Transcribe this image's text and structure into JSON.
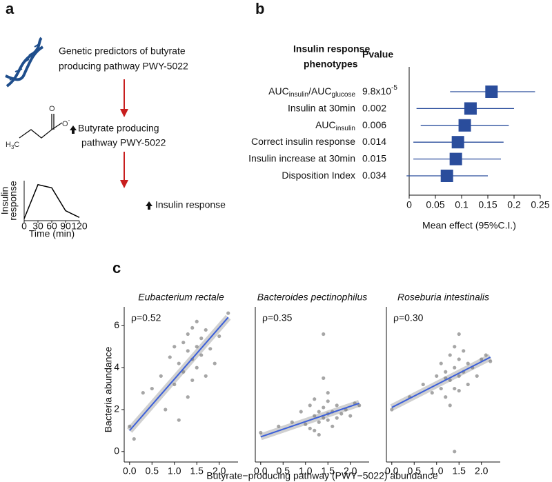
{
  "panel_a": {
    "label": "a",
    "step1": [
      "Genetic predictors of butyrate",
      "producing pathway PWY-5022"
    ],
    "step2": [
      "Butyrate producing",
      "pathway PWY-5022"
    ],
    "step3": "Insulin response",
    "molecule": {
      "oxygen": "O",
      "oxygen_ion": [
        "O",
        "-"
      ],
      "methyl": [
        "H",
        "3",
        "C"
      ]
    }
  },
  "panel_b": {
    "label": "b"
  },
  "panel_c": {
    "label": "c",
    "ylabel": "Bacteria abundance",
    "xlabel": "Butyrate−producing pathway (PWY−5022) abundance"
  },
  "chart_data": [
    {
      "type": "line",
      "ylabel": [
        "Insulin",
        "response"
      ],
      "xlabel": "Time (min)",
      "x": [
        0,
        30,
        60,
        90,
        120
      ],
      "values": [
        0.05,
        0.9,
        0.82,
        0.25,
        0.08
      ],
      "xlim": [
        0,
        120
      ],
      "xticks": [
        0,
        30,
        60,
        90,
        120
      ],
      "ylim": [
        0,
        1
      ],
      "color": "#000000"
    },
    {
      "type": "forest",
      "header": [
        "Insulin response",
        "phenotypes"
      ],
      "pvalue_header": "Pvalue",
      "categories": [
        [
          "AUC",
          "insulin",
          "/AUC",
          "glucose"
        ],
        [
          "Insulin at 30min"
        ],
        [
          "AUC",
          "insulin"
        ],
        [
          "Correct insulin response"
        ],
        [
          "Insulin increase at 30min"
        ],
        [
          "Disposition Index"
        ]
      ],
      "pvalue_labels": [
        [
          "9.8x10",
          "-5"
        ],
        [
          "0.002"
        ],
        [
          "0.006"
        ],
        [
          "0.014"
        ],
        [
          "0.015"
        ],
        [
          "0.034"
        ]
      ],
      "values": [
        0.157,
        0.117,
        0.106,
        0.093,
        0.089,
        0.072
      ],
      "ci_low": [
        0.078,
        0.014,
        0.022,
        0.008,
        0.008,
        -0.005
      ],
      "ci_high": [
        0.24,
        0.2,
        0.19,
        0.18,
        0.175,
        0.15
      ],
      "xlabel": "Mean effect (95%C.I.)",
      "xlim": [
        0,
        0.25
      ],
      "xticks": [
        0,
        0.05,
        0.1,
        0.15,
        0.2,
        0.25
      ],
      "color": "#2a4d9c"
    },
    {
      "type": "scatter",
      "title": "Eubacterium rectale",
      "annotation": "ρ=0.52",
      "x": [
        0.0,
        0.1,
        0.3,
        0.5,
        0.7,
        0.8,
        0.9,
        1.0,
        1.0,
        1.1,
        1.1,
        1.2,
        1.2,
        1.3,
        1.3,
        1.3,
        1.4,
        1.4,
        1.4,
        1.5,
        1.5,
        1.5,
        1.6,
        1.6,
        1.7,
        1.7,
        1.8,
        1.9,
        2.0,
        2.2
      ],
      "values": [
        1.2,
        0.6,
        2.8,
        3.0,
        3.6,
        2.0,
        4.5,
        3.2,
        5.0,
        4.2,
        1.5,
        5.2,
        3.8,
        4.8,
        5.6,
        2.6,
        4.4,
        5.9,
        3.4,
        5.0,
        4.0,
        6.2,
        4.6,
        5.4,
        3.6,
        5.8,
        4.9,
        4.2,
        5.5,
        6.6
      ],
      "fit_x": [
        0,
        2.2
      ],
      "fit_y": [
        1.0,
        6.4
      ],
      "xlim": [
        -0.12,
        2.42
      ],
      "ylim": [
        -0.5,
        6.9
      ],
      "xticks": [
        {
          "value": 0,
          "label": "0.0"
        },
        0.5,
        {
          "value": 1,
          "label": "1.0"
        },
        1.5,
        {
          "value": 2,
          "label": "2.0"
        }
      ],
      "yticks": [
        0,
        2,
        4,
        6
      ],
      "color": "#3b5fd9"
    },
    {
      "type": "scatter",
      "title": "Bacteroides pectinophilus",
      "annotation": "ρ=0.35",
      "x": [
        0.0,
        0.4,
        0.7,
        0.9,
        1.0,
        1.1,
        1.1,
        1.2,
        1.2,
        1.3,
        1.3,
        1.3,
        1.4,
        1.4,
        1.4,
        1.5,
        1.5,
        1.5,
        1.6,
        1.6,
        1.7,
        1.7,
        1.8,
        1.9,
        2.0,
        2.1,
        1.4,
        1.2,
        1.5,
        2.2
      ],
      "values": [
        0.9,
        1.2,
        1.4,
        1.9,
        1.3,
        2.2,
        1.1,
        1.7,
        2.5,
        1.4,
        1.9,
        0.8,
        1.6,
        2.1,
        3.5,
        1.5,
        1.8,
        2.4,
        1.2,
        1.9,
        1.6,
        2.2,
        1.8,
        2.0,
        1.7,
        2.3,
        5.6,
        1.0,
        2.8,
        2.2
      ],
      "fit_x": [
        0,
        2.2
      ],
      "fit_y": [
        0.7,
        2.3
      ],
      "xlim": [
        -0.12,
        2.42
      ],
      "ylim": [
        -0.5,
        6.9
      ],
      "xticks": [
        {
          "value": 0,
          "label": "0.0"
        },
        0.5,
        {
          "value": 1,
          "label": "1.0"
        },
        1.5,
        {
          "value": 2,
          "label": "2.0"
        }
      ],
      "color": "#3b5fd9"
    },
    {
      "type": "scatter",
      "title": "Roseburia intestinalis",
      "annotation": "ρ=0.30",
      "x": [
        0.0,
        0.4,
        0.7,
        0.9,
        1.0,
        1.1,
        1.1,
        1.2,
        1.2,
        1.3,
        1.3,
        1.3,
        1.4,
        1.4,
        1.4,
        1.5,
        1.5,
        1.5,
        1.6,
        1.6,
        1.7,
        1.7,
        1.8,
        1.9,
        2.0,
        2.1,
        1.4,
        1.2,
        1.5,
        2.2
      ],
      "values": [
        2.0,
        2.6,
        3.2,
        2.8,
        3.6,
        3.0,
        4.2,
        2.6,
        3.8,
        3.4,
        4.6,
        2.2,
        3.0,
        4.0,
        5.0,
        3.6,
        4.4,
        2.9,
        3.8,
        4.8,
        3.2,
        4.2,
        4.0,
        3.6,
        4.4,
        4.6,
        0.0,
        3.5,
        5.6,
        4.3
      ],
      "fit_x": [
        0,
        2.2
      ],
      "fit_y": [
        2.1,
        4.5
      ],
      "xlim": [
        -0.12,
        2.42
      ],
      "ylim": [
        -0.5,
        6.9
      ],
      "xticks": [
        {
          "value": 0,
          "label": "0.0"
        },
        0.5,
        {
          "value": 1,
          "label": "1.0"
        },
        1.5,
        {
          "value": 2,
          "label": "2.0"
        }
      ],
      "color": "#3b5fd9"
    }
  ]
}
